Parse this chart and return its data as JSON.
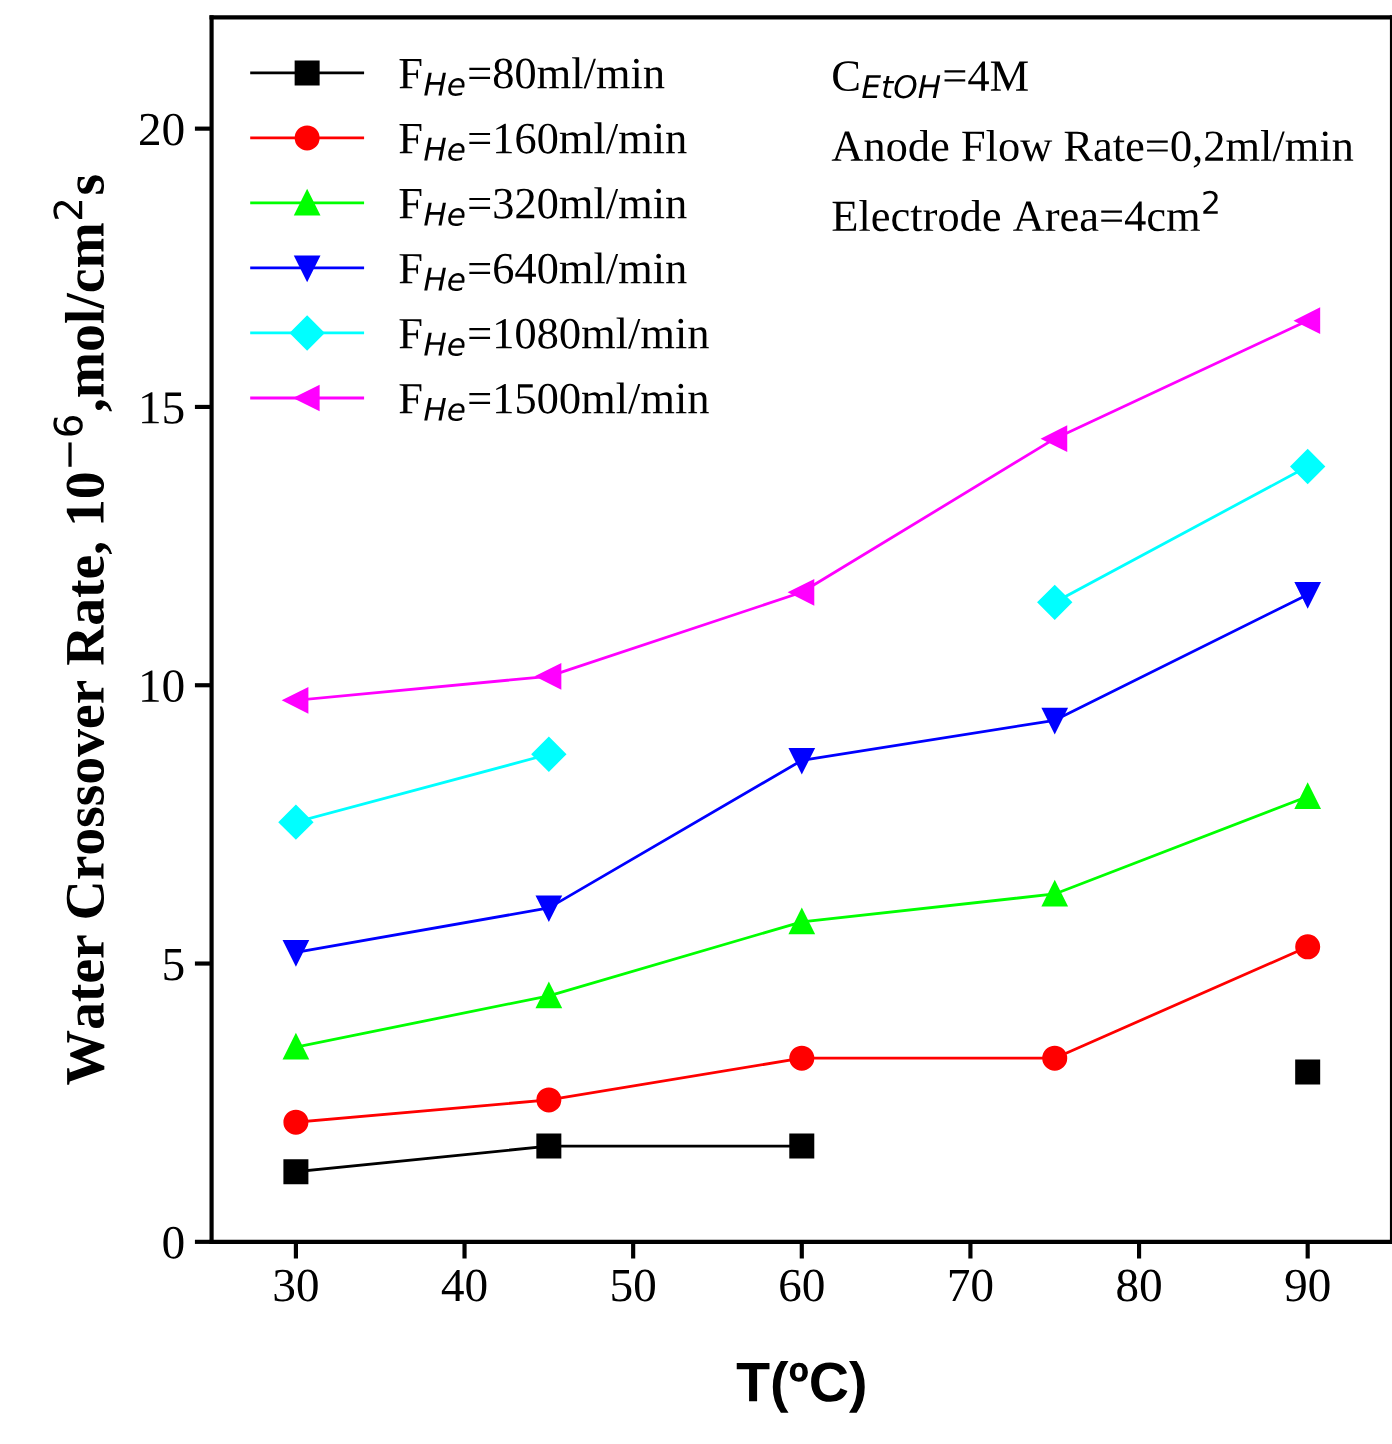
{
  "chart_data": {
    "type": "line",
    "xlabel": "T(ºC)",
    "ylabel": "Water Crossover Rate, 10$^{−6}$,mol/cm$^{2}$s",
    "x": [
      30,
      45,
      60,
      75,
      90
    ],
    "xlim": [
      25,
      95
    ],
    "xticks": [
      30,
      40,
      50,
      60,
      70,
      80,
      90
    ],
    "ylim": [
      0,
      22
    ],
    "yticks": [
      0,
      5,
      10,
      15,
      20
    ],
    "legend": "top left",
    "grid": false,
    "line_style": "solid",
    "annotations": [
      "C$_{EtOH}$=4M",
      "Anode Flow Rate=0,2ml/min",
      "Electrode Area=4cm$^{2}$"
    ],
    "series": [
      {
        "name": "F$_{He}$=80ml/min",
        "color": "#000000",
        "marker": "square",
        "values": [
          1.26,
          1.72,
          1.72,
          null,
          3.05
        ]
      },
      {
        "name": "F$_{He}$=160ml/min",
        "color": "#ff0000",
        "marker": "circle",
        "values": [
          2.15,
          2.55,
          3.3,
          3.3,
          5.3
        ]
      },
      {
        "name": "F$_{He}$=320ml/min",
        "color": "#00ff00",
        "marker": "triangle",
        "values": [
          3.5,
          4.42,
          5.75,
          6.25,
          8.0
        ]
      },
      {
        "name": "F$_{He}$=640ml/min",
        "color": "#0000ff",
        "marker": "triangle_down",
        "values": [
          5.2,
          6.0,
          8.65,
          9.37,
          11.63
        ]
      },
      {
        "name": "F$_{He}$=1080ml/min",
        "color": "#00ffff",
        "marker": "diamond",
        "values": [
          7.54,
          8.76,
          null,
          11.49,
          13.93
        ]
      },
      {
        "name": "F$_{He}$=1500ml/min",
        "color": "#ff00ff",
        "marker": "triangle_left",
        "values": [
          9.73,
          10.16,
          11.67,
          14.43,
          16.55
        ]
      }
    ]
  }
}
